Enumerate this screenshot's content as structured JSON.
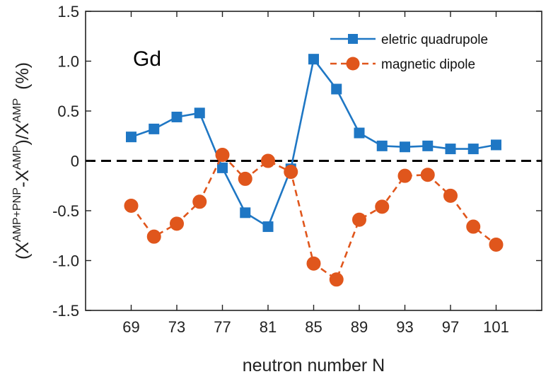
{
  "chart_data": {
    "type": "line",
    "title": "",
    "annotation": "Gd",
    "xlabel": "neutron number N",
    "ylabel": {
      "open": "(X",
      "sup1": "AMP+PNP",
      "mid": "-X",
      "sup2": "AMP",
      "slash": ")/X",
      "sup3": "AMP",
      "unit": "(%)"
    },
    "xlim": [
      65,
      105
    ],
    "ylim": [
      -1.5,
      1.5
    ],
    "xticks": [
      69,
      73,
      77,
      81,
      85,
      89,
      93,
      97,
      101
    ],
    "yticks": [
      -1.5,
      -1.0,
      -0.5,
      0,
      0.5,
      1.0,
      1.5
    ],
    "ytick_labels": [
      "-1.5",
      "-1.0",
      "-0.5",
      "0",
      "0.5",
      "1.0",
      "1.5"
    ],
    "reference_line": {
      "y": 0,
      "style": "dashed",
      "color": "#000000"
    },
    "legend_position": "top-right",
    "x": [
      69,
      71,
      73,
      75,
      77,
      79,
      81,
      83,
      85,
      87,
      89,
      91,
      93,
      95,
      97,
      99,
      101
    ],
    "series": [
      {
        "name": "eletric quadrupole",
        "marker": "square",
        "line_style": "solid",
        "color": "#1f77c4",
        "values": [
          0.24,
          0.32,
          0.44,
          0.48,
          -0.07,
          -0.52,
          -0.66,
          -0.08,
          1.02,
          0.72,
          0.28,
          0.15,
          0.14,
          0.15,
          0.12,
          0.12,
          0.16
        ]
      },
      {
        "name": "magnetic dipole",
        "marker": "circle",
        "line_style": "dashed",
        "color": "#e0561c",
        "values": [
          -0.45,
          -0.76,
          -0.63,
          -0.41,
          0.06,
          -0.18,
          0.0,
          -0.11,
          -1.03,
          -1.19,
          -0.59,
          -0.46,
          -0.15,
          -0.14,
          -0.35,
          -0.66,
          -0.84
        ]
      }
    ]
  }
}
